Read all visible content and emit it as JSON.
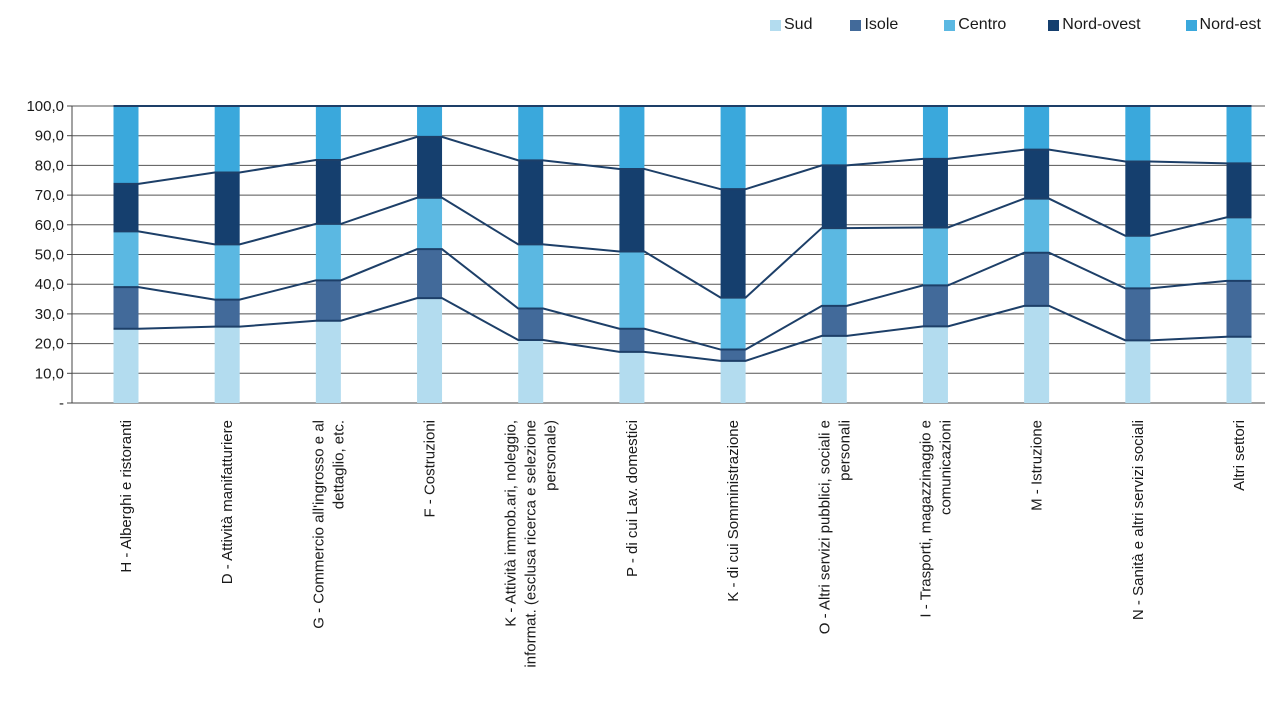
{
  "chart_data": {
    "type": "bar",
    "stacked": true,
    "title": "",
    "xlabel": "",
    "ylabel": "",
    "ylim": [
      0,
      100
    ],
    "y_ticks": [
      "-",
      "10,0",
      "20,0",
      "30,0",
      "40,0",
      "50,0",
      "60,0",
      "70,0",
      "80,0",
      "90,0",
      "100,0"
    ],
    "grid": true,
    "legend_position": "top-right",
    "connector_lines": true,
    "categories": [
      [
        "H - Alberghi e ristoranti"
      ],
      [
        "D - Attività  manifatturiere"
      ],
      [
        "G - Commercio all'ingrosso e al",
        "dettaglio, etc."
      ],
      [
        "F - Costruzioni"
      ],
      [
        "K - Attività  immob.ari, noleggio,",
        "informat. (esclusa ricerca e selezione",
        "personale)"
      ],
      [
        "P - di cui Lav. domestici"
      ],
      [
        "K - di cui Somministrazione"
      ],
      [
        "O - Altri servizi pubblici, sociali e",
        "personali"
      ],
      [
        "I - Trasporti, magazzinaggio e",
        "comunicazioni"
      ],
      [
        "M - Istruzione"
      ],
      [
        "N - Sanità  e altri servizi sociali"
      ],
      [
        "Altri settori"
      ]
    ],
    "series": [
      {
        "name": "Sud",
        "color": "#b3dcef",
        "values": [
          25.0,
          25.7,
          27.7,
          35.3,
          21.2,
          17.2,
          14.2,
          22.6,
          25.8,
          32.7,
          21.1,
          22.3
        ]
      },
      {
        "name": "Isole",
        "color": "#426a9a",
        "values": [
          14.0,
          9.1,
          13.6,
          16.5,
          10.6,
          7.8,
          3.8,
          10.1,
          13.8,
          17.9,
          17.5,
          18.8
        ]
      },
      {
        "name": "Centro",
        "color": "#5bb8e2",
        "values": [
          18.8,
          18.6,
          19.0,
          17.3,
          21.6,
          26.0,
          17.5,
          26.2,
          19.5,
          18.2,
          17.7,
          21.4
        ]
      },
      {
        "name": "Nord-ovest",
        "color": "#153f6e",
        "values": [
          16.0,
          24.2,
          21.5,
          20.5,
          28.3,
          27.8,
          36.5,
          21.1,
          23.1,
          16.5,
          25.0,
          18.2
        ]
      },
      {
        "name": "Nord-est",
        "color": "#3aa8dc",
        "values": [
          26.2,
          22.4,
          18.2,
          10.4,
          18.3,
          21.2,
          28.0,
          20.0,
          17.8,
          14.7,
          18.7,
          19.3
        ]
      }
    ]
  }
}
